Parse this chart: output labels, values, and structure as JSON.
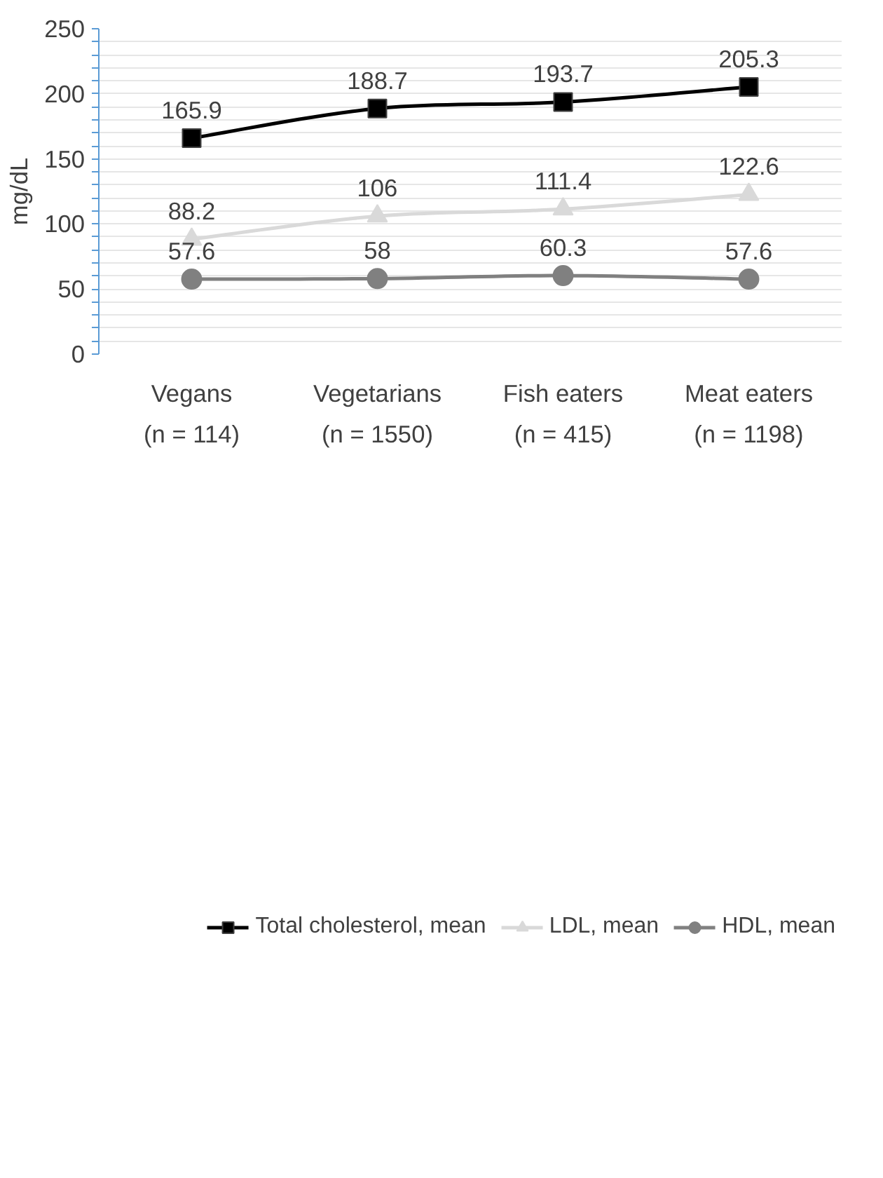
{
  "chart_data": {
    "type": "line",
    "ylabel": "mg/dL",
    "categories": [
      "Vegans\n(n = 114)",
      "Vegetarians\n(n = 1550)",
      "Fish eaters\n(n = 415)",
      "Meat eaters\n(n = 1198)"
    ],
    "series": [
      {
        "name": "Total cholesterol, mean",
        "color": "#000000",
        "marker": "square",
        "values": [
          165.9,
          188.7,
          193.7,
          205.3
        ]
      },
      {
        "name": "LDL, mean",
        "color": "#d9d9d9",
        "marker": "triangle",
        "values": [
          88.2,
          106,
          111.4,
          122.6
        ]
      },
      {
        "name": "HDL, mean",
        "color": "#808080",
        "marker": "circle",
        "values": [
          57.6,
          58,
          60.3,
          57.6
        ]
      }
    ],
    "ylim": [
      0,
      250
    ],
    "yticks": [
      0,
      {
        "value": 10,
        "label": null
      },
      {
        "value": 20,
        "label": null
      },
      {
        "value": 30,
        "label": null
      },
      {
        "value": 40,
        "label": null
      },
      50,
      {
        "value": 60,
        "label": null
      },
      {
        "value": 70,
        "label": null
      },
      {
        "value": 80,
        "label": null
      },
      {
        "value": 90,
        "label": null
      },
      100,
      {
        "value": 110,
        "label": null
      },
      {
        "value": 120,
        "label": null
      },
      {
        "value": 130,
        "label": null
      },
      {
        "value": 140,
        "label": null
      },
      150,
      {
        "value": 160,
        "label": null
      },
      {
        "value": 170,
        "label": null
      },
      {
        "value": 180,
        "label": null
      },
      {
        "value": 190,
        "label": null
      },
      200,
      {
        "value": 210,
        "label": null
      },
      {
        "value": 220,
        "label": null
      },
      {
        "value": 230,
        "label": null
      },
      {
        "value": 240,
        "label": null
      },
      250
    ],
    "grid": "y",
    "legend": "bottom",
    "data_labels": true,
    "line_style": "solid"
  }
}
